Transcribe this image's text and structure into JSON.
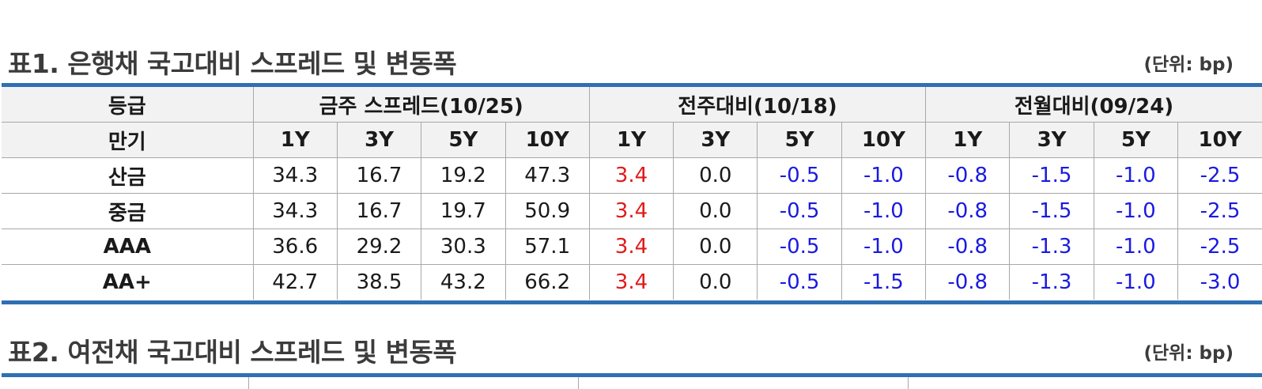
{
  "table1": {
    "title": "표1. 은행채 국고대비 스프레드 및 변동폭",
    "unit": "(단위: bp)",
    "header_row1": {
      "grade": "등급",
      "groups": [
        "금주 스프레드(10/25)",
        "전주대비(10/18)",
        "전월대비(09/24)"
      ]
    },
    "header_row2": {
      "maturity": "만기",
      "tenors": [
        "1Y",
        "3Y",
        "5Y",
        "10Y",
        "1Y",
        "3Y",
        "5Y",
        "10Y",
        "1Y",
        "3Y",
        "5Y",
        "10Y"
      ]
    },
    "rows": [
      {
        "grade": "산금",
        "cells": [
          "34.3",
          "16.7",
          "19.2",
          "47.3",
          "3.4",
          "0.0",
          "-0.5",
          "-1.0",
          "-0.8",
          "-1.5",
          "-1.0",
          "-2.5"
        ]
      },
      {
        "grade": "중금",
        "cells": [
          "34.3",
          "16.7",
          "19.7",
          "50.9",
          "3.4",
          "0.0",
          "-0.5",
          "-1.0",
          "-0.8",
          "-1.5",
          "-1.0",
          "-2.5"
        ]
      },
      {
        "grade": "AAA",
        "cells": [
          "36.6",
          "29.2",
          "30.3",
          "57.1",
          "3.4",
          "0.0",
          "-0.5",
          "-1.0",
          "-0.8",
          "-1.3",
          "-1.0",
          "-2.5"
        ]
      },
      {
        "grade": "AA+",
        "cells": [
          "42.7",
          "38.5",
          "43.2",
          "66.2",
          "3.4",
          "0.0",
          "-0.5",
          "-1.5",
          "-0.8",
          "-1.3",
          "-1.0",
          "-3.0"
        ]
      }
    ]
  },
  "table2": {
    "title": "표2. 여전채 국고대비 스프레드 및 변동폭",
    "unit": "(단위: bp)"
  },
  "colors": {
    "accent_rule": "#2f6fb3",
    "positive_change": "#e21a1a",
    "negative_change": "#1a1ae0",
    "header_bg": "#f2f2f2"
  }
}
